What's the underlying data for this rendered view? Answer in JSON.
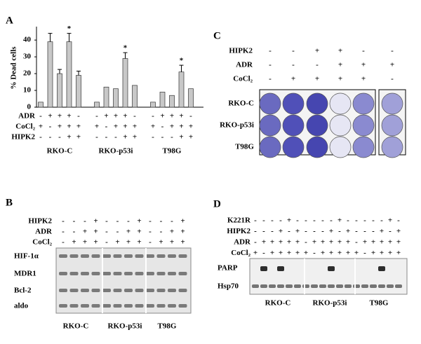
{
  "chart_data": {
    "type": "bar",
    "panel_label": "A",
    "y_label": "% Dead cells",
    "ylim": [
      0,
      48
    ],
    "yticks": [
      0,
      10,
      20,
      30,
      40
    ],
    "color": "#c8c8c8",
    "groups": [
      "RKO-C",
      "RKO-p53i",
      "T98G"
    ],
    "values": [
      3,
      39,
      20,
      39,
      19,
      3,
      12,
      11,
      29,
      13,
      3,
      9,
      7,
      21,
      11
    ],
    "errors": [
      null,
      5,
      2.5,
      5,
      2.5,
      null,
      null,
      null,
      3.5,
      null,
      null,
      null,
      null,
      4,
      null
    ],
    "marks": [
      null,
      null,
      null,
      "*",
      null,
      null,
      null,
      null,
      "*",
      null,
      null,
      null,
      null,
      "*",
      null
    ],
    "conditions": [
      {
        "name": "ADR",
        "values": [
          "-",
          "+",
          "+",
          "+",
          "-",
          "-",
          "+",
          "+",
          "+",
          "-",
          "-",
          "+",
          "+",
          "+",
          "-"
        ]
      },
      {
        "name": "CoCl₂",
        "values": [
          "+",
          "-",
          "+",
          "+",
          "+",
          "+",
          "-",
          "+",
          "+",
          "+",
          "+",
          "-",
          "+",
          "+",
          "+"
        ]
      },
      {
        "name": "HIPK2",
        "values": [
          "-",
          "-",
          "-",
          "+",
          "+",
          "-",
          "-",
          "-",
          "+",
          "+",
          "-",
          "-",
          "-",
          "+",
          "+"
        ]
      }
    ]
  },
  "panel_b": {
    "panel_label": "B",
    "conditions": [
      {
        "name": "HIPK2",
        "values": [
          "-",
          "-",
          "-",
          "+",
          "-",
          "-",
          "-",
          "+",
          "-",
          "-",
          "-",
          "+"
        ]
      },
      {
        "name": "ADR",
        "values": [
          "-",
          "-",
          "+",
          "+",
          "-",
          "-",
          "+",
          "+",
          "-",
          "-",
          "+",
          "+"
        ]
      },
      {
        "name": "CoCl₂",
        "values": [
          "-",
          "+",
          "+",
          "+",
          "-",
          "+",
          "+",
          "+",
          "-",
          "+",
          "+",
          "+"
        ]
      }
    ],
    "blots": [
      "HIF-1α",
      "MDR1",
      "Bcl-2",
      "aldo"
    ],
    "groups": [
      "RKO-C",
      "RKO-p53i",
      "T98G"
    ]
  },
  "panel_c": {
    "panel_label": "C",
    "conditions": [
      {
        "name": "HIPK2",
        "values": [
          "-",
          "-",
          "+",
          "+",
          "-",
          "-"
        ]
      },
      {
        "name": "ADR",
        "values": [
          "-",
          "-",
          "-",
          "+",
          "+",
          "+"
        ]
      },
      {
        "name": "CoCl₂",
        "values": [
          "-",
          "+",
          "+",
          "+",
          "+",
          "-"
        ]
      }
    ],
    "rows": [
      "RKO-C",
      "RKO-p53i",
      "T98G"
    ]
  },
  "panel_d": {
    "panel_label": "D",
    "conditions": [
      {
        "name": "K221R",
        "values": [
          "-",
          "-",
          "-",
          "-",
          "+",
          "-",
          "-",
          "-",
          "-",
          "-",
          "+",
          "-",
          "-",
          "-",
          "-",
          "-",
          "+",
          "-"
        ]
      },
      {
        "name": "HIPK2",
        "values": [
          "-",
          "-",
          "-",
          "+",
          "-",
          "+",
          "-",
          "-",
          "-",
          "+",
          "-",
          "+",
          "-",
          "-",
          "-",
          "+",
          "-",
          "+"
        ]
      },
      {
        "name": "ADR",
        "values": [
          "-",
          "+",
          "+",
          "+",
          "+",
          "+",
          "-",
          "+",
          "+",
          "+",
          "+",
          "+",
          "-",
          "+",
          "+",
          "+",
          "+",
          "+"
        ]
      },
      {
        "name": "CoCl₂",
        "values": [
          "+",
          "-",
          "+",
          "+",
          "+",
          "+",
          "+",
          "-",
          "+",
          "+",
          "+",
          "+",
          "+",
          "-",
          "+",
          "+",
          "+",
          "+"
        ]
      }
    ],
    "blots": [
      "PARP",
      "Hsp70"
    ],
    "groups": [
      "RKO-C",
      "RKO-p53i",
      "T98G"
    ]
  }
}
